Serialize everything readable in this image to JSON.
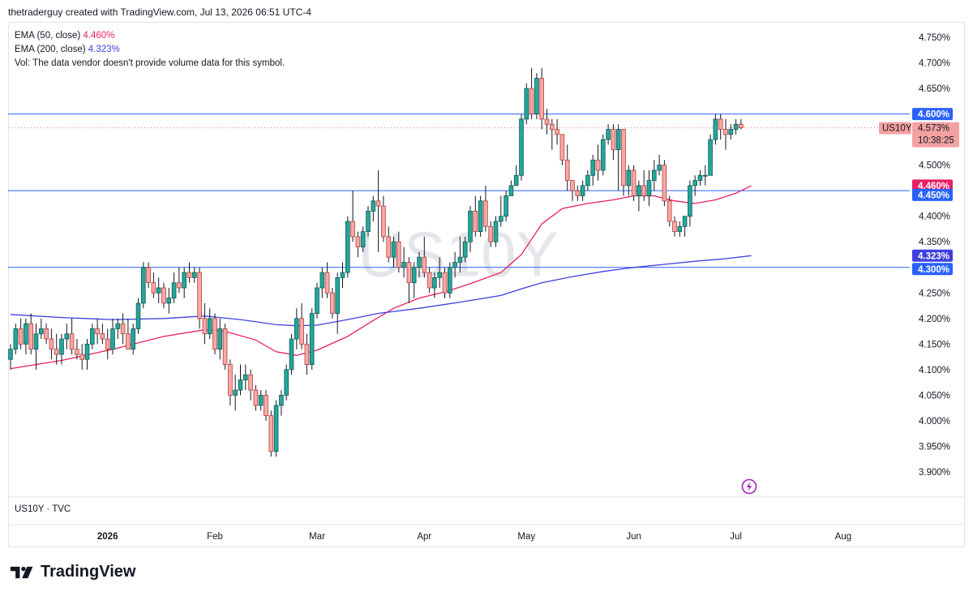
{
  "header": {
    "text": "thetraderguy created with TradingView.com, Jul 13, 2026 06:51 UTC-4"
  },
  "legend": {
    "ema50_label": "EMA (50, close)",
    "ema50_value": "4.460%",
    "ema200_label": "EMA (200, close)",
    "ema200_value": "4.323%",
    "vol_text": "Vol: The data vendor doesn't provide volume data for this symbol."
  },
  "watermark": "US10Y",
  "symbol_source": "US10Y · TVC",
  "brand": {
    "name": "TradingView",
    "logo_icon": "tradingview-logo-icon"
  },
  "colors": {
    "up": "#26a69a",
    "down": "#ef5350",
    "ema50": "#e91e63",
    "ema200": "#3f3fe0",
    "hline": "#2962ff",
    "price_tag": "#f4a1a1",
    "ema50_tag": "#e91e63",
    "ema200_tag": "#3f3fe0",
    "hline_tag": "#2962ff"
  },
  "price_labels": {
    "symbol_tag": "US10Y",
    "last_price": "4.573%",
    "countdown": "10:38:25",
    "hline_tags": [
      "4.600%",
      "4.450%",
      "4.300%"
    ],
    "ema50_tag": "4.460%",
    "ema200_tag": "4.323%"
  },
  "chart_data": {
    "type": "candlestick",
    "y_axis": {
      "range": [
        3.87,
        4.77
      ],
      "unit": "%",
      "ticks": [
        3.9,
        3.95,
        4.0,
        4.05,
        4.1,
        4.15,
        4.2,
        4.25,
        4.3,
        4.35,
        4.4,
        4.45,
        4.5,
        4.55,
        4.6,
        4.65,
        4.7,
        4.75
      ],
      "tick_labels": [
        "3.900%",
        "3.950%",
        "4.000%",
        "4.050%",
        "4.100%",
        "4.150%",
        "4.200%",
        "4.250%",
        "4.300%",
        "4.350%",
        "4.400%",
        "4.450%",
        "4.500%",
        "4.550%",
        "4.600%",
        "4.650%",
        "4.700%",
        "4.750%"
      ]
    },
    "x_axis": {
      "labels": [
        {
          "text": "2026",
          "bar": 19,
          "bold": true
        },
        {
          "text": "Feb",
          "bar": 40
        },
        {
          "text": "Mar",
          "bar": 60
        },
        {
          "text": "Apr",
          "bar": 81
        },
        {
          "text": "May",
          "bar": 101
        },
        {
          "text": "Jun",
          "bar": 122
        },
        {
          "text": "Jul",
          "bar": 142
        },
        {
          "text": "Aug",
          "bar": 163
        }
      ],
      "total_slots": 185
    },
    "horizontal_lines": [
      4.6,
      4.45,
      4.3
    ],
    "last_price": 4.573,
    "candles": [
      [
        4.12,
        4.15,
        4.1,
        4.14
      ],
      [
        4.14,
        4.19,
        4.13,
        4.18
      ],
      [
        4.18,
        4.2,
        4.14,
        4.15
      ],
      [
        4.15,
        4.2,
        4.13,
        4.19
      ],
      [
        4.19,
        4.21,
        4.13,
        4.14
      ],
      [
        4.14,
        4.19,
        4.1,
        4.17
      ],
      [
        4.17,
        4.2,
        4.16,
        4.18
      ],
      [
        4.18,
        4.19,
        4.15,
        4.16
      ],
      [
        4.16,
        4.18,
        4.12,
        4.14
      ],
      [
        4.14,
        4.17,
        4.11,
        4.13
      ],
      [
        4.13,
        4.17,
        4.11,
        4.16
      ],
      [
        4.16,
        4.19,
        4.14,
        4.17
      ],
      [
        4.17,
        4.2,
        4.13,
        4.14
      ],
      [
        4.14,
        4.16,
        4.12,
        4.13
      ],
      [
        4.13,
        4.15,
        4.1,
        4.12
      ],
      [
        4.12,
        4.16,
        4.1,
        4.15
      ],
      [
        4.15,
        4.19,
        4.14,
        4.18
      ],
      [
        4.18,
        4.2,
        4.15,
        4.17
      ],
      [
        4.17,
        4.19,
        4.15,
        4.16
      ],
      [
        4.16,
        4.18,
        4.12,
        4.14
      ],
      [
        4.14,
        4.2,
        4.13,
        4.18
      ],
      [
        4.18,
        4.2,
        4.16,
        4.19
      ],
      [
        4.19,
        4.21,
        4.15,
        4.17
      ],
      [
        4.17,
        4.2,
        4.14,
        4.14
      ],
      [
        4.14,
        4.19,
        4.13,
        4.18
      ],
      [
        4.18,
        4.24,
        4.17,
        4.23
      ],
      [
        4.23,
        4.31,
        4.22,
        4.3
      ],
      [
        4.3,
        4.31,
        4.26,
        4.27
      ],
      [
        4.27,
        4.29,
        4.24,
        4.25
      ],
      [
        4.25,
        4.28,
        4.23,
        4.26
      ],
      [
        4.26,
        4.27,
        4.22,
        4.23
      ],
      [
        4.23,
        4.26,
        4.21,
        4.24
      ],
      [
        4.24,
        4.29,
        4.23,
        4.27
      ],
      [
        4.27,
        4.3,
        4.25,
        4.26
      ],
      [
        4.26,
        4.3,
        4.24,
        4.29
      ],
      [
        4.29,
        4.31,
        4.27,
        4.28
      ],
      [
        4.28,
        4.3,
        4.27,
        4.29
      ],
      [
        4.29,
        4.3,
        4.18,
        4.2
      ],
      [
        4.2,
        4.23,
        4.15,
        4.17
      ],
      [
        4.17,
        4.22,
        4.16,
        4.2
      ],
      [
        4.2,
        4.21,
        4.13,
        4.14
      ],
      [
        4.14,
        4.2,
        4.12,
        4.18
      ],
      [
        4.18,
        4.19,
        4.1,
        4.11
      ],
      [
        4.11,
        4.12,
        4.03,
        4.05
      ],
      [
        4.05,
        4.09,
        4.02,
        4.06
      ],
      [
        4.06,
        4.11,
        4.05,
        4.08
      ],
      [
        4.08,
        4.11,
        4.06,
        4.09
      ],
      [
        4.09,
        4.1,
        4.04,
        4.06
      ],
      [
        4.06,
        4.07,
        4.02,
        4.03
      ],
      [
        4.03,
        4.06,
        4.02,
        4.05
      ],
      [
        4.05,
        4.06,
        4.0,
        4.01
      ],
      [
        4.01,
        4.02,
        3.93,
        3.94
      ],
      [
        3.94,
        4.04,
        3.93,
        4.03
      ],
      [
        4.03,
        4.06,
        4.01,
        4.05
      ],
      [
        4.05,
        4.11,
        4.04,
        4.1
      ],
      [
        4.1,
        4.17,
        4.09,
        4.16
      ],
      [
        4.16,
        4.22,
        4.14,
        4.2
      ],
      [
        4.2,
        4.23,
        4.14,
        4.15
      ],
      [
        4.15,
        4.17,
        4.09,
        4.11
      ],
      [
        4.11,
        4.22,
        4.1,
        4.21
      ],
      [
        4.21,
        4.27,
        4.2,
        4.26
      ],
      [
        4.26,
        4.3,
        4.24,
        4.29
      ],
      [
        4.29,
        4.31,
        4.24,
        4.25
      ],
      [
        4.25,
        4.26,
        4.2,
        4.21
      ],
      [
        4.21,
        4.29,
        4.17,
        4.28
      ],
      [
        4.28,
        4.31,
        4.26,
        4.29
      ],
      [
        4.29,
        4.4,
        4.28,
        4.39
      ],
      [
        4.39,
        4.45,
        4.35,
        4.36
      ],
      [
        4.36,
        4.37,
        4.32,
        4.34
      ],
      [
        4.34,
        4.38,
        4.33,
        4.37
      ],
      [
        4.37,
        4.42,
        4.36,
        4.41
      ],
      [
        4.41,
        4.44,
        4.39,
        4.43
      ],
      [
        4.43,
        4.49,
        4.33,
        4.42
      ],
      [
        4.42,
        4.44,
        4.35,
        4.36
      ],
      [
        4.36,
        4.38,
        4.31,
        4.32
      ],
      [
        4.32,
        4.36,
        4.3,
        4.35
      ],
      [
        4.35,
        4.37,
        4.29,
        4.3
      ],
      [
        4.3,
        4.34,
        4.28,
        4.31
      ],
      [
        4.31,
        4.32,
        4.23,
        4.27
      ],
      [
        4.27,
        4.31,
        4.24,
        4.3
      ],
      [
        4.3,
        4.33,
        4.28,
        4.32
      ],
      [
        4.32,
        4.36,
        4.28,
        4.29
      ],
      [
        4.29,
        4.3,
        4.25,
        4.26
      ],
      [
        4.26,
        4.29,
        4.24,
        4.28
      ],
      [
        4.28,
        4.32,
        4.26,
        4.29
      ],
      [
        4.29,
        4.3,
        4.24,
        4.25
      ],
      [
        4.25,
        4.31,
        4.24,
        4.3
      ],
      [
        4.3,
        4.33,
        4.28,
        4.31
      ],
      [
        4.31,
        4.36,
        4.29,
        4.32
      ],
      [
        4.32,
        4.36,
        4.31,
        4.35
      ],
      [
        4.35,
        4.42,
        4.33,
        4.41
      ],
      [
        4.41,
        4.44,
        4.36,
        4.37
      ],
      [
        4.37,
        4.44,
        4.36,
        4.43
      ],
      [
        4.43,
        4.46,
        4.37,
        4.38
      ],
      [
        4.38,
        4.39,
        4.34,
        4.35
      ],
      [
        4.35,
        4.4,
        4.34,
        4.39
      ],
      [
        4.39,
        4.44,
        4.38,
        4.4
      ],
      [
        4.4,
        4.45,
        4.39,
        4.44
      ],
      [
        4.44,
        4.47,
        4.44,
        4.46
      ],
      [
        4.46,
        4.5,
        4.46,
        4.48
      ],
      [
        4.48,
        4.6,
        4.47,
        4.59
      ],
      [
        4.59,
        4.66,
        4.58,
        4.65
      ],
      [
        4.65,
        4.69,
        4.59,
        4.6
      ],
      [
        4.6,
        4.68,
        4.59,
        4.67
      ],
      [
        4.67,
        4.69,
        4.57,
        4.59
      ],
      [
        4.59,
        4.61,
        4.56,
        4.58
      ],
      [
        4.58,
        4.59,
        4.53,
        4.57
      ],
      [
        4.57,
        4.59,
        4.54,
        4.56
      ],
      [
        4.56,
        4.56,
        4.5,
        4.51
      ],
      [
        4.51,
        4.54,
        4.45,
        4.47
      ],
      [
        4.47,
        4.47,
        4.43,
        4.45
      ],
      [
        4.45,
        4.46,
        4.43,
        4.44
      ],
      [
        4.44,
        4.47,
        4.43,
        4.46
      ],
      [
        4.46,
        4.49,
        4.45,
        4.48
      ],
      [
        4.48,
        4.52,
        4.46,
        4.51
      ],
      [
        4.51,
        4.54,
        4.47,
        4.49
      ],
      [
        4.49,
        4.56,
        4.48,
        4.55
      ],
      [
        4.55,
        4.58,
        4.54,
        4.57
      ],
      [
        4.57,
        4.58,
        4.51,
        4.53
      ],
      [
        4.53,
        4.58,
        4.45,
        4.57
      ],
      [
        4.57,
        4.57,
        4.44,
        4.46
      ],
      [
        4.46,
        4.5,
        4.44,
        4.49
      ],
      [
        4.49,
        4.5,
        4.43,
        4.44
      ],
      [
        4.44,
        4.47,
        4.41,
        4.46
      ],
      [
        4.46,
        4.49,
        4.43,
        4.44
      ],
      [
        4.44,
        4.49,
        4.42,
        4.47
      ],
      [
        4.47,
        4.51,
        4.45,
        4.49
      ],
      [
        4.49,
        4.52,
        4.48,
        4.5
      ],
      [
        4.5,
        4.51,
        4.42,
        4.43
      ],
      [
        4.43,
        4.44,
        4.38,
        4.39
      ],
      [
        4.39,
        4.4,
        4.36,
        4.37
      ],
      [
        4.37,
        4.39,
        4.36,
        4.38
      ],
      [
        4.38,
        4.4,
        4.36,
        4.4
      ],
      [
        4.4,
        4.47,
        4.38,
        4.46
      ],
      [
        4.46,
        4.48,
        4.44,
        4.47
      ],
      [
        4.47,
        4.49,
        4.46,
        4.48
      ],
      [
        4.48,
        4.5,
        4.46,
        4.48
      ],
      [
        4.48,
        4.56,
        4.48,
        4.55
      ],
      [
        4.55,
        4.6,
        4.54,
        4.59
      ],
      [
        4.59,
        4.6,
        4.55,
        4.57
      ],
      [
        4.57,
        4.59,
        4.53,
        4.56
      ],
      [
        4.56,
        4.58,
        4.55,
        4.57
      ],
      [
        4.57,
        4.59,
        4.56,
        4.58
      ],
      [
        4.58,
        4.59,
        4.57,
        4.573
      ]
    ],
    "series": [
      {
        "name": "EMA (50, close)",
        "points": [
          [
            0,
            4.102
          ],
          [
            10,
            4.118
          ],
          [
            20,
            4.14
          ],
          [
            30,
            4.165
          ],
          [
            38,
            4.178
          ],
          [
            42,
            4.175
          ],
          [
            48,
            4.158
          ],
          [
            52,
            4.135
          ],
          [
            56,
            4.128
          ],
          [
            60,
            4.138
          ],
          [
            66,
            4.165
          ],
          [
            70,
            4.19
          ],
          [
            75,
            4.22
          ],
          [
            80,
            4.24
          ],
          [
            85,
            4.252
          ],
          [
            90,
            4.268
          ],
          [
            96,
            4.29
          ],
          [
            100,
            4.325
          ],
          [
            104,
            4.385
          ],
          [
            108,
            4.415
          ],
          [
            113,
            4.425
          ],
          [
            118,
            4.432
          ],
          [
            122,
            4.44
          ],
          [
            126,
            4.44
          ],
          [
            130,
            4.43
          ],
          [
            134,
            4.425
          ],
          [
            138,
            4.432
          ],
          [
            142,
            4.445
          ],
          [
            145,
            4.46
          ]
        ]
      },
      {
        "name": "EMA (200, close)",
        "points": [
          [
            0,
            4.208
          ],
          [
            10,
            4.202
          ],
          [
            20,
            4.198
          ],
          [
            30,
            4.2
          ],
          [
            38,
            4.205
          ],
          [
            45,
            4.198
          ],
          [
            52,
            4.188
          ],
          [
            56,
            4.186
          ],
          [
            60,
            4.187
          ],
          [
            66,
            4.198
          ],
          [
            72,
            4.21
          ],
          [
            80,
            4.22
          ],
          [
            88,
            4.232
          ],
          [
            96,
            4.245
          ],
          [
            100,
            4.258
          ],
          [
            104,
            4.27
          ],
          [
            110,
            4.282
          ],
          [
            116,
            4.292
          ],
          [
            122,
            4.3
          ],
          [
            128,
            4.306
          ],
          [
            134,
            4.312
          ],
          [
            140,
            4.317
          ],
          [
            145,
            4.323
          ]
        ]
      }
    ]
  }
}
